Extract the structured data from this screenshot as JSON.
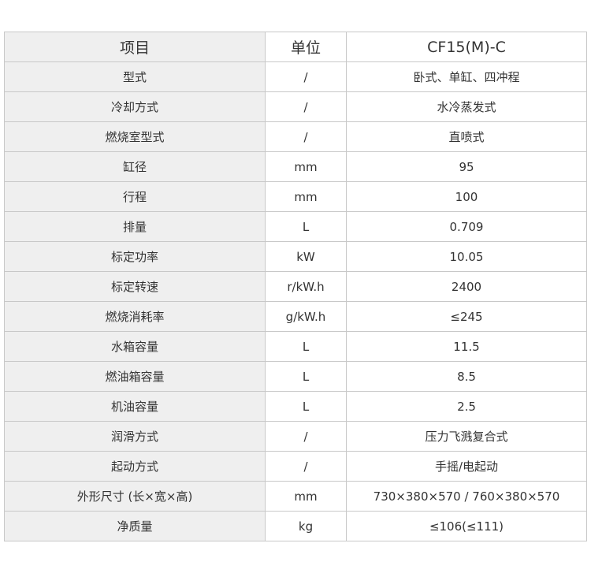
{
  "table": {
    "headers": [
      "项目",
      "单位",
      "CF15(M)-C"
    ],
    "rows": [
      [
        "型式",
        "/",
        "卧式、单缸、四冲程"
      ],
      [
        "冷却方式",
        "/",
        "水冷蒸发式"
      ],
      [
        "燃烧室型式",
        "/",
        "直喷式"
      ],
      [
        "缸径",
        "mm",
        "95"
      ],
      [
        "行程",
        "mm",
        "100"
      ],
      [
        "排量",
        "L",
        "0.709"
      ],
      [
        "标定功率",
        "kW",
        "10.05"
      ],
      [
        "标定转速",
        "r/kW.h",
        "2400"
      ],
      [
        "燃烧消耗率",
        "g/kW.h",
        "≤245"
      ],
      [
        "水箱容量",
        "L",
        "11.5"
      ],
      [
        "燃油箱容量",
        "L",
        "8.5"
      ],
      [
        "机油容量",
        "L",
        "2.5"
      ],
      [
        "润滑方式",
        "/",
        "压力飞溅复合式"
      ],
      [
        "起动方式",
        "/",
        "手摇/电起动"
      ],
      [
        "外形尺寸 (长×宽×高)",
        "mm",
        "730×380×570 / 760×380×570"
      ],
      [
        "净质量",
        "kg",
        "≤106(≤111)"
      ]
    ]
  }
}
